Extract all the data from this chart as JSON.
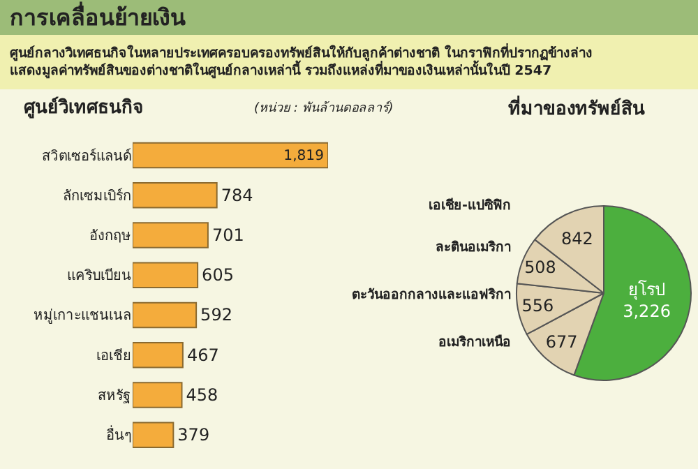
{
  "chart_data": [
    {
      "type": "other",
      "title": "การเคลื่อนย้ายเงิน",
      "subtitle": "ศูนย์กลางวิเทศธนกิจในหลายประเทศครอบครองทรัพย์สินให้กับลูกค้าต่างชาติ ในกราฟิกที่ปรากฏข้างล่าง\nแสดงมูลค่าทรัพย์สินของต่างชาติในศูนย์กลางเหล่านี้ รวมถึงแหล่งที่มาของเงินเหล่านั้นในปี 2547"
    },
    {
      "type": "bar",
      "orientation": "horizontal",
      "title": "ศูนย์วิเทศธนกิจ",
      "subtitle": "(หน่วย : พันล้านดอลลาร์)",
      "categories": [
        "สวิตเซอร์แลนด์",
        "ลักเซมเบิร์ก",
        "อังกฤษ",
        "แคริบเบียน",
        "หมู่เกาะแชนเนล",
        "เอเชีย",
        "สหรัฐ",
        "อื่นๆ"
      ],
      "values": [
        1819,
        784,
        701,
        605,
        592,
        467,
        458,
        379
      ],
      "value_labels": [
        "1,819",
        "784",
        "701",
        "605",
        "592",
        "467",
        "458",
        "379"
      ],
      "color": "#f4ac3c",
      "tick_labels": "y"
    },
    {
      "type": "pie",
      "title": "ที่มาของทรัพย์สิน",
      "categories": [
        "ยุโรป",
        "อเมริกาเหนือ",
        "ตะวันออกกลางและแอฟริกา",
        "ละตินอเมริกา",
        "เอเชีย-แปซิฟิก"
      ],
      "values": [
        3226,
        677,
        556,
        508,
        842
      ],
      "value_labels": [
        "3,226",
        "677",
        "556",
        "508",
        "842"
      ],
      "colors": [
        "#4caf3e",
        "#e2d3b2",
        "#e2d3b2",
        "#e2d3b2",
        "#e2d3b2"
      ]
    }
  ]
}
